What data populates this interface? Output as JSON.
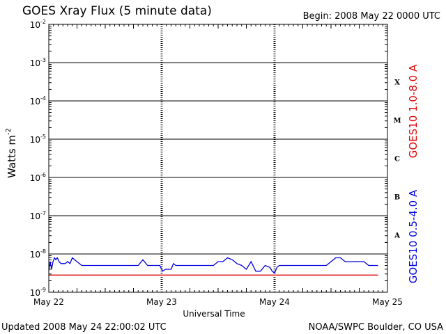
{
  "header": {
    "title": "GOES Xray Flux (5 minute data)",
    "begin": "Begin:  2008 May 22 0000 UTC"
  },
  "footer": {
    "updated": "Updated 2008 May 24 22:00:02 UTC",
    "credit": "NOAA/SWPC Boulder, CO USA"
  },
  "colors": {
    "long_channel": "#e00000",
    "short_channel": "#0000e0",
    "axis": "#000000"
  },
  "chart_data": {
    "type": "line",
    "title": "GOES Xray Flux (5 minute data)",
    "xlabel": "Universal Time",
    "ylabel": "Watts m",
    "ylabel_exponent": "-2",
    "y_scale": "log",
    "ylim_exponents": [
      -9,
      -2
    ],
    "y_tick_base": "10",
    "y_tick_exponents": [
      "-2",
      "-3",
      "-4",
      "-5",
      "-6",
      "-7",
      "-8",
      "-9"
    ],
    "x_unit": "hours since 2008 May 22 0000 UTC",
    "xlim": [
      0,
      72
    ],
    "x_ticks": [
      {
        "x": 0,
        "label": "May 22"
      },
      {
        "x": 24,
        "label": "May 23"
      },
      {
        "x": 48,
        "label": "May 24"
      },
      {
        "x": 72,
        "label": "May 25"
      }
    ],
    "flare_classes": [
      {
        "label": "X",
        "exponent": -3.5
      },
      {
        "label": "M",
        "exponent": -4.5
      },
      {
        "label": "C",
        "exponent": -5.5
      },
      {
        "label": "B",
        "exponent": -6.5
      },
      {
        "label": "A",
        "exponent": -7.5
      }
    ],
    "grid": "horizontal-decades",
    "series": [
      {
        "name": "GOES10 1.0-8.0 A",
        "x": [
          0,
          70
        ],
        "log10_flux": [
          -8.55,
          -8.55
        ]
      },
      {
        "name": "GOES10 0.5-4.0 A",
        "x": [
          0,
          0.3,
          0.6,
          0.9,
          1.2,
          1.5,
          1.8,
          2.2,
          2.6,
          3.0,
          3.5,
          4.0,
          4.5,
          5.0,
          5.5,
          6.0,
          6.5,
          7.0,
          7.5,
          8.0,
          9.0,
          10.0,
          11.0,
          12.0,
          13.0,
          14.0,
          15.0,
          16.0,
          17.0,
          18.0,
          19.0,
          20.0,
          21.0,
          22.0,
          23.0,
          23.6,
          24.2,
          24.8,
          25.4,
          26.0,
          26.5,
          27.0,
          28.0,
          29.0,
          30.0,
          31.0,
          32.0,
          33.0,
          34.0,
          35.0,
          36.0,
          37.0,
          38.0,
          39.0,
          40.0,
          41.0,
          42.0,
          43.0,
          44.0,
          45.0,
          46.0,
          47.0,
          47.5,
          48.0,
          48.5,
          49.0,
          50.0,
          51.0,
          52.0,
          53.0,
          54.0,
          55.0,
          56.0,
          57.0,
          58.0,
          59.0,
          60.0,
          61.0,
          62.0,
          63.0,
          64.0,
          65.0,
          66.0,
          67.0,
          68.0,
          69.0,
          70.0
        ],
        "log10_flux": [
          -8.45,
          -8.2,
          -8.4,
          -8.2,
          -8.1,
          -8.15,
          -8.1,
          -8.2,
          -8.25,
          -8.25,
          -8.25,
          -8.2,
          -8.25,
          -8.1,
          -8.15,
          -8.2,
          -8.25,
          -8.3,
          -8.3,
          -8.3,
          -8.3,
          -8.3,
          -8.3,
          -8.3,
          -8.3,
          -8.3,
          -8.3,
          -8.3,
          -8.3,
          -8.3,
          -8.3,
          -8.15,
          -8.3,
          -8.3,
          -8.3,
          -8.3,
          -8.45,
          -8.4,
          -8.4,
          -8.4,
          -8.25,
          -8.3,
          -8.3,
          -8.3,
          -8.3,
          -8.3,
          -8.3,
          -8.3,
          -8.3,
          -8.3,
          -8.2,
          -8.2,
          -8.1,
          -8.15,
          -8.25,
          -8.3,
          -8.4,
          -8.2,
          -8.45,
          -8.45,
          -8.3,
          -8.35,
          -8.45,
          -8.5,
          -8.35,
          -8.3,
          -8.3,
          -8.3,
          -8.3,
          -8.3,
          -8.3,
          -8.3,
          -8.3,
          -8.3,
          -8.3,
          -8.3,
          -8.2,
          -8.1,
          -8.1,
          -8.2,
          -8.2,
          -8.2,
          -8.2,
          -8.2,
          -8.3,
          -8.3,
          -8.3
        ]
      }
    ]
  }
}
